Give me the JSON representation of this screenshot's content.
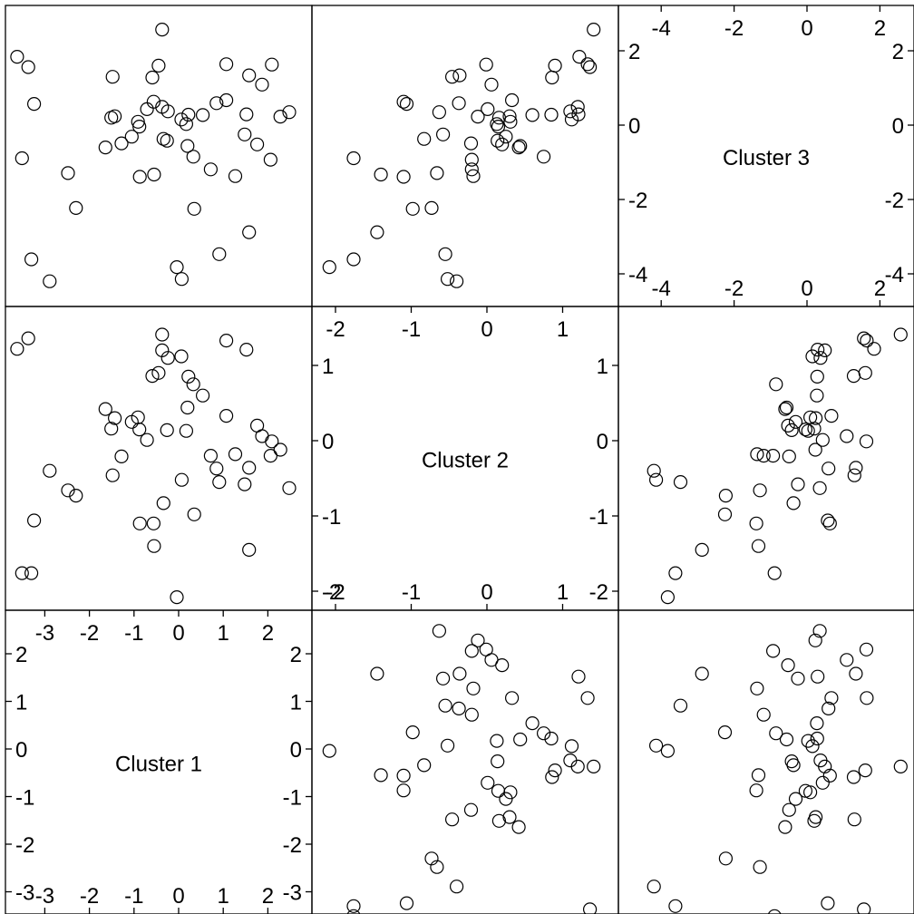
{
  "chart_data": {
    "type": "scatter",
    "variables": [
      {
        "name": "Cluster 1",
        "ticks": [
          -3,
          -2,
          -1,
          0,
          1,
          2
        ],
        "tick_labels": [
          "-3",
          "-2",
          "-1",
          "0",
          "1",
          "2"
        ]
      },
      {
        "name": "Cluster 2",
        "ticks": [
          -2,
          -1,
          0,
          1
        ],
        "tick_labels": [
          "-2",
          "-1",
          "0",
          "1"
        ]
      },
      {
        "name": "Cluster 3",
        "ticks": [
          -4,
          -2,
          0,
          2
        ],
        "tick_labels": [
          "-4",
          "-2",
          "0",
          "2"
        ]
      }
    ],
    "grid": false,
    "legend": "none",
    "point_style": "open-circle",
    "point_color": "#000000",
    "points_note": "Scatterplot matrix of three variables; each row below is one observation [Cluster 1, Cluster 2, Cluster 3], read from the off-diagonal panels.",
    "points": [
      [
        -0.04,
        -2.08,
        -3.82
      ],
      [
        -3.24,
        -1.06,
        0.57
      ],
      [
        0.17,
        0.13,
        0.03
      ],
      [
        1.58,
        -1.45,
        -2.88
      ],
      [
        0.91,
        -0.55,
        -3.47
      ],
      [
        -0.87,
        -1.1,
        -1.39
      ],
      [
        0.07,
        -0.52,
        -4.14
      ],
      [
        1.52,
        1.21,
        0.29
      ],
      [
        1.76,
        0.2,
        -0.52
      ],
      [
        1.58,
        -0.36,
        1.34
      ],
      [
        0.35,
        -0.98,
        -2.25
      ],
      [
        2.48,
        -0.63,
        0.35
      ],
      [
        -2.48,
        -0.66,
        -1.29
      ],
      [
        -1.05,
        0.25,
        -0.31
      ],
      [
        -1.43,
        0.3,
        0.24
      ],
      [
        2.06,
        -0.2,
        -0.93
      ],
      [
        -0.55,
        -1.4,
        -1.33
      ],
      [
        -0.71,
        0.01,
        0.43
      ],
      [
        -0.34,
        -0.83,
        -0.37
      ],
      [
        -1.48,
        -0.46,
        1.3
      ],
      [
        -1.28,
        -0.21,
        -0.49
      ],
      [
        -0.88,
        0.15,
        -0.04
      ],
      [
        -0.26,
        0.14,
        -0.42
      ],
      [
        -0.91,
        0.31,
        0.09
      ],
      [
        -1.64,
        0.42,
        -0.6
      ],
      [
        -2.89,
        -0.4,
        -4.2
      ],
      [
        0.33,
        0.75,
        -0.85
      ],
      [
        -0.24,
        1.1,
        0.37
      ],
      [
        0.06,
        1.12,
        0.15
      ],
      [
        -3.51,
        -1.76,
        -0.89
      ],
      [
        -0.59,
        0.86,
        1.28
      ],
      [
        -0.45,
        0.9,
        1.6
      ],
      [
        0.54,
        0.6,
        0.27
      ],
      [
        1.27,
        -0.18,
        -1.37
      ],
      [
        0.85,
        -0.37,
        0.59
      ],
      [
        -0.37,
        1.41,
        2.57
      ],
      [
        0.72,
        -0.2,
        -1.19
      ],
      [
        1.87,
        0.06,
        1.09
      ],
      [
        -2.3,
        -0.73,
        -2.23
      ],
      [
        -0.37,
        1.2,
        0.49
      ],
      [
        -3.3,
        -1.76,
        -3.61
      ],
      [
        2.28,
        -0.12,
        0.23
      ],
      [
        -1.51,
        0.16,
        0.2
      ],
      [
        1.48,
        -0.58,
        -0.25
      ],
      [
        -0.56,
        -1.1,
        0.63
      ],
      [
        1.07,
        0.33,
        0.67
      ],
      [
        -3.62,
        1.22,
        1.84
      ],
      [
        -3.37,
        1.36,
        1.56
      ],
      [
        1.07,
        1.33,
        1.64
      ],
      [
        2.09,
        -0.01,
        1.63
      ],
      [
        0.22,
        0.85,
        0.28
      ],
      [
        0.2,
        0.44,
        -0.56
      ]
    ]
  }
}
